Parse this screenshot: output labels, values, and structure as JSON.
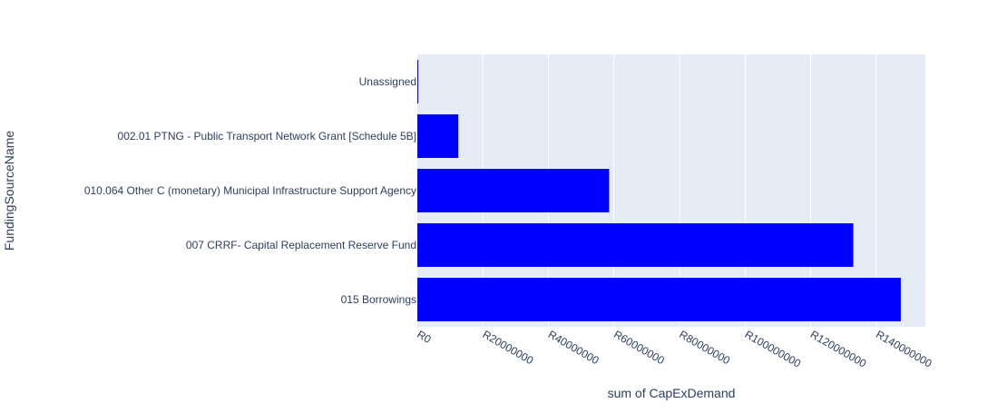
{
  "chart_data": {
    "type": "bar",
    "orientation": "horizontal",
    "categories": [
      "015 Borrowings",
      "007 CRRF- Capital Replacement Reserve Fund",
      "010.064 Other C (monetary) Municipal Infrastructure Support Agency",
      "002.01 PTNG - Public Transport Network Grant [Schedule 5B]",
      "Unassigned"
    ],
    "values": [
      147500000,
      133000000,
      58500000,
      12500000,
      300000
    ],
    "xlabel": "sum of CapExDemand",
    "ylabel": "FundingSourceName",
    "xlim": [
      0,
      155000000
    ],
    "x_ticks": [
      0,
      20000000,
      40000000,
      60000000,
      80000000,
      100000000,
      120000000,
      140000000
    ],
    "x_tick_labels": [
      "R0",
      "R20000000",
      "R40000000",
      "R60000000",
      "R80000000",
      "R100000000",
      "R120000000",
      "R140000000"
    ],
    "grid": true,
    "legend": "none",
    "colors": {
      "bar": "#0000ff",
      "plot_background": "#e5ecf6",
      "grid": "#ffffff",
      "text": "#2a3f5f"
    }
  }
}
